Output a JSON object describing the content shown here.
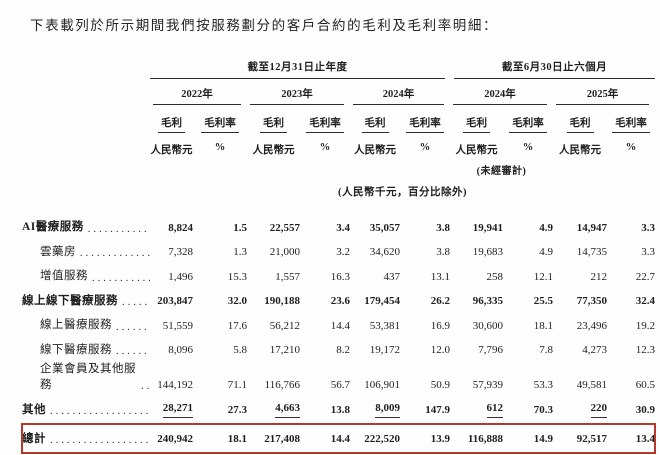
{
  "page": {
    "title": "下表載列於所示期間我們按服務劃分的客戶合約的毛利及毛利率明細："
  },
  "table": {
    "period_groups": [
      {
        "label": "截至12月31日止年度",
        "years": [
          "2022年",
          "2023年",
          "2024年"
        ]
      },
      {
        "label": "截至6月30日止六個月",
        "years": [
          "2024年",
          "2025年"
        ]
      }
    ],
    "measure_headers": {
      "gross_profit": "毛利",
      "gross_margin": "毛利率"
    },
    "unit_headers": {
      "gross_profit": "人民幣元",
      "gross_margin": "%"
    },
    "unaudited_note": "(未經審計)",
    "units_note": "(人民幣千元，百分比除外)",
    "highlight_color": "#b5392a",
    "rows": [
      {
        "label": "AI醫療服務",
        "bold": true,
        "indent": 0,
        "values": [
          "8,824",
          "1.5",
          "22,557",
          "3.4",
          "35,057",
          "3.8",
          "19,941",
          "4.9",
          "14,947",
          "3.3"
        ]
      },
      {
        "label": "雲藥房",
        "bold": false,
        "indent": 1,
        "values": [
          "7,328",
          "1.3",
          "21,000",
          "3.2",
          "34,620",
          "3.8",
          "19,683",
          "4.9",
          "14,735",
          "3.3"
        ]
      },
      {
        "label": "增值服務",
        "bold": false,
        "indent": 1,
        "values": [
          "1,496",
          "15.3",
          "1,557",
          "16.3",
          "437",
          "13.1",
          "258",
          "12.1",
          "212",
          "22.7"
        ]
      },
      {
        "label": "線上線下醫療服務",
        "bold": true,
        "indent": 0,
        "values": [
          "203,847",
          "32.0",
          "190,188",
          "23.6",
          "179,454",
          "26.2",
          "96,335",
          "25.5",
          "77,350",
          "32.4"
        ]
      },
      {
        "label": "線上醫療服務",
        "bold": false,
        "indent": 1,
        "values": [
          "51,559",
          "17.6",
          "56,212",
          "14.4",
          "53,381",
          "16.9",
          "30,600",
          "18.1",
          "23,496",
          "19.2"
        ]
      },
      {
        "label": "線下醫療服務",
        "bold": false,
        "indent": 1,
        "values": [
          "8,096",
          "5.8",
          "17,210",
          "8.2",
          "19,172",
          "12.0",
          "7,796",
          "7.8",
          "4,273",
          "12.3"
        ]
      },
      {
        "label": "企業會員及其他服務",
        "bold": false,
        "indent": 1,
        "values": [
          "144,192",
          "71.1",
          "116,766",
          "56.7",
          "106,901",
          "50.9",
          "57,939",
          "53.3",
          "49,581",
          "60.5"
        ]
      },
      {
        "label": "其他",
        "bold": true,
        "indent": 0,
        "rule_under": true,
        "values": [
          "28,271",
          "27.3",
          "4,663",
          "13.8",
          "8,009",
          "147.9",
          "612",
          "70.3",
          "220",
          "30.9"
        ]
      },
      {
        "label": "總計",
        "bold": true,
        "indent": 0,
        "total": true,
        "values": [
          "240,942",
          "18.1",
          "217,408",
          "14.4",
          "222,520",
          "13.9",
          "116,888",
          "14.9",
          "92,517",
          "13.4"
        ]
      }
    ]
  }
}
